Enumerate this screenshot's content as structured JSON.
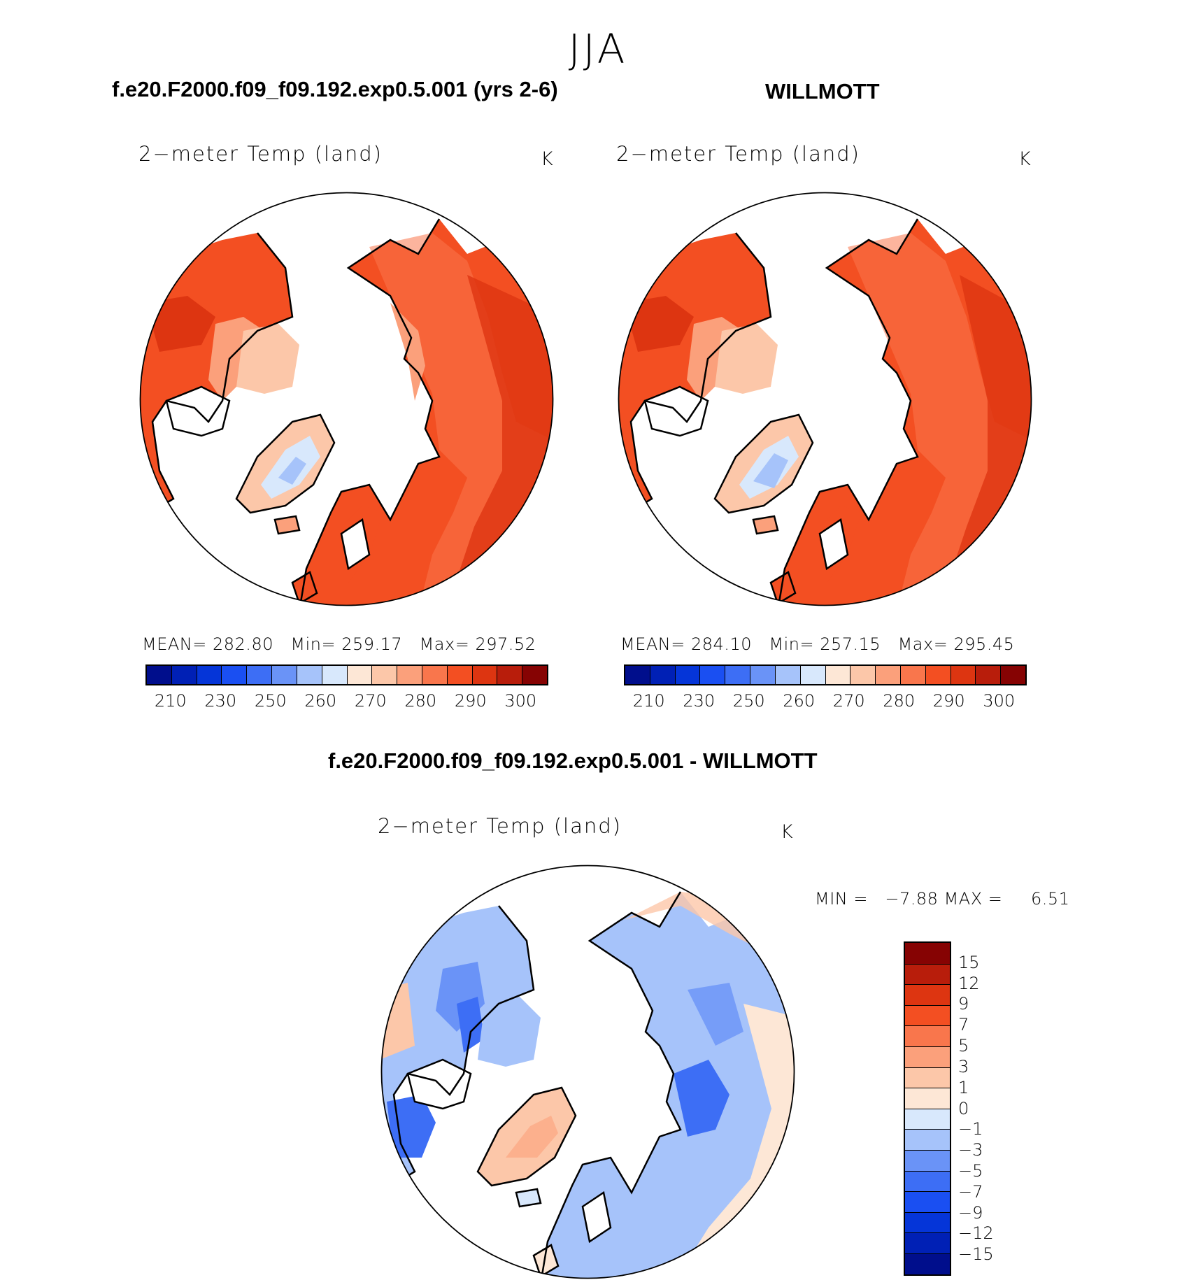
{
  "title": "JJA",
  "panel_left": {
    "header": "f.e20.F2000.f09_f09.192.exp0.5.001 (yrs 2-6)",
    "variable": "2−meter Temp (land)",
    "unit": "K",
    "stats": {
      "mean_label": "MEAN=",
      "mean": "282.80",
      "min_label": "Min=",
      "min": "259.17",
      "max_label": "Max=",
      "max": "297.52"
    }
  },
  "panel_right": {
    "header": "WILLMOTT",
    "variable": "2−meter Temp (land)",
    "unit": "K",
    "stats": {
      "mean_label": "MEAN=",
      "mean": "284.10",
      "min_label": "Min=",
      "min": "257.15",
      "max_label": "Max=",
      "max": "295.45"
    }
  },
  "panel_diff": {
    "header": "f.e20.F2000.f09_f09.192.exp0.5.001 - WILLMOTT",
    "variable": "2−meter Temp (land)",
    "unit": "K",
    "minmax": {
      "min_label": "MIN =",
      "min": "−7.88",
      "max_label": "MAX =",
      "max": "6.51"
    }
  },
  "colorbar_temp": {
    "colors": [
      "#000e8c",
      "#0020b5",
      "#0535d8",
      "#1a4ff2",
      "#3d6ef5",
      "#6a93f7",
      "#a6c3fa",
      "#d8e8fc",
      "#fde7d6",
      "#fcc7a9",
      "#fba07b",
      "#f9764c",
      "#f34f22",
      "#dd3511",
      "#b81d0b",
      "#860303"
    ],
    "tick_labels": [
      "210",
      "230",
      "250",
      "260",
      "270",
      "280",
      "290",
      "300"
    ]
  },
  "colorbar_diff": {
    "colors": [
      "#860303",
      "#b81d0b",
      "#dd3511",
      "#f34f22",
      "#f9764c",
      "#fba07b",
      "#fcc7a9",
      "#fde7d6",
      "#d8e8fc",
      "#a6c3fa",
      "#6a93f7",
      "#3d6ef5",
      "#1a4ff2",
      "#0535d8",
      "#0020b5",
      "#000e8c"
    ],
    "tick_labels": [
      "15",
      "12",
      "9",
      "7",
      "5",
      "3",
      "1",
      "0",
      "−1",
      "−3",
      "−5",
      "−7",
      "−9",
      "−12",
      "−15"
    ]
  }
}
